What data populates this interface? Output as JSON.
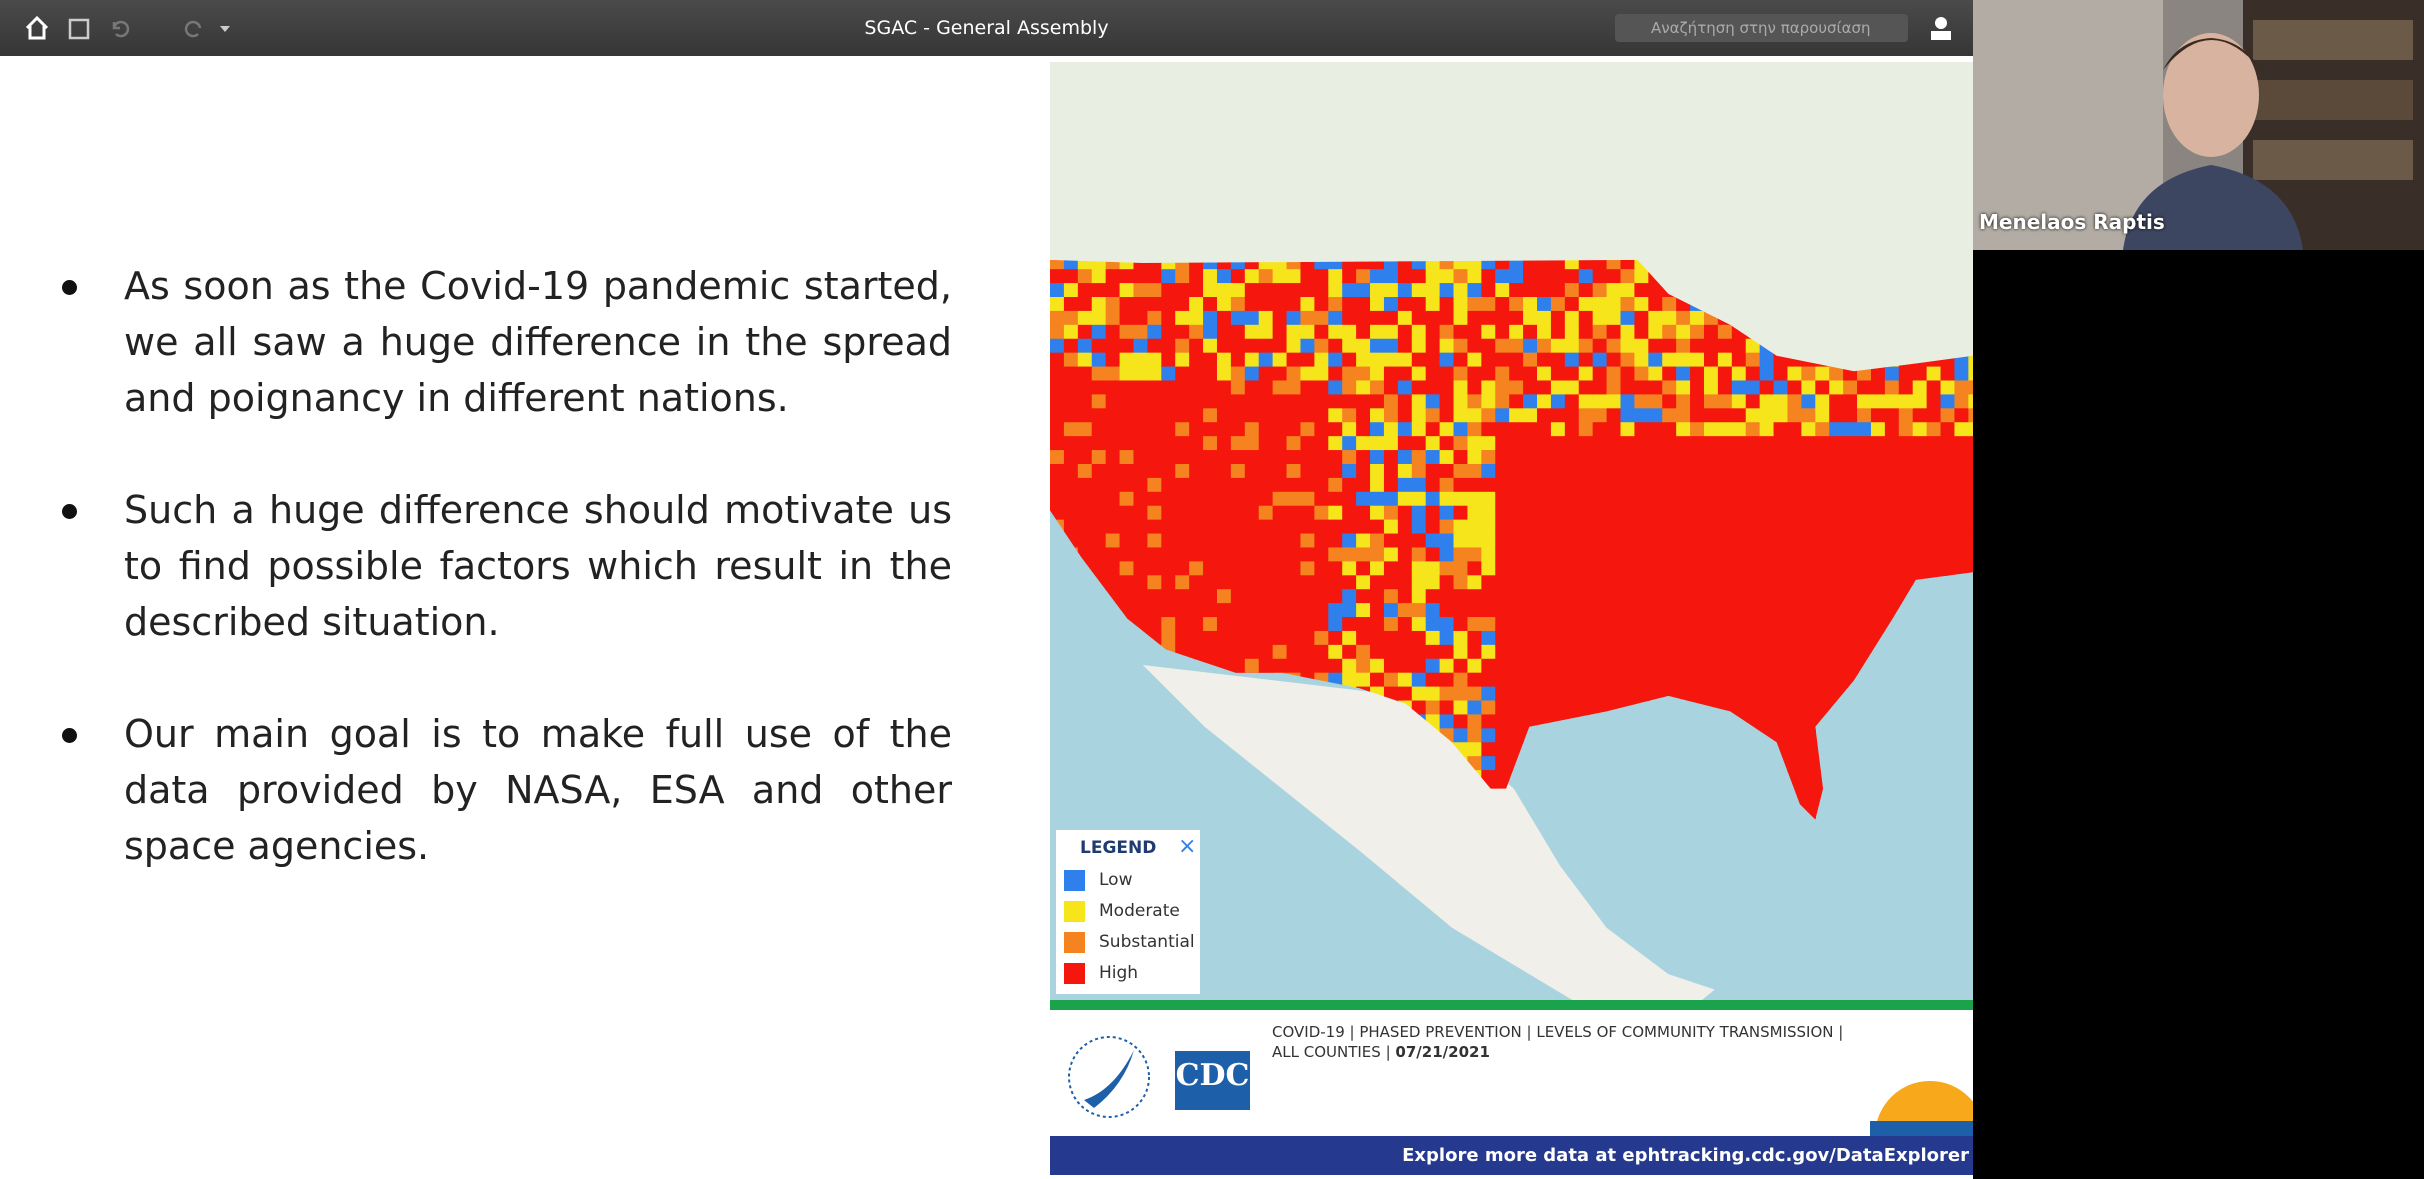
{
  "toolbar": {
    "title": "SGAC - General Assembly",
    "search_placeholder": "Αναζήτηση στην παρουσίαση"
  },
  "slide": {
    "bullets": [
      "As soon as the Covid-19 pandemic started, we all saw a huge difference in the spread and poignancy in different nations.",
      "Such a huge difference should motivate us to find possible factors which result in the described situation.",
      "Our main goal is to make full use of the data provided by NASA, ESA and other space agencies."
    ],
    "map": {
      "legend": {
        "title": "LEGEND",
        "close": "×",
        "items": [
          {
            "label": "Low",
            "color": "#2f80ed"
          },
          {
            "label": "Moderate",
            "color": "#f7e51b"
          },
          {
            "label": "Substantial",
            "color": "#f5831f"
          },
          {
            "label": "High",
            "color": "#f5160d"
          }
        ]
      },
      "caption_line1": "COVID-19 | PHASED PREVENTION | LEVELS OF COMMUNITY TRANSMISSION |",
      "caption_line2": "ALL COUNTIES |",
      "caption_date": "07/21/2021",
      "logo": "CDC",
      "footer": "Explore more data at ephtracking.cdc.gov/DataExplorer"
    }
  },
  "participant": {
    "name": "Menelaos Raptis"
  }
}
